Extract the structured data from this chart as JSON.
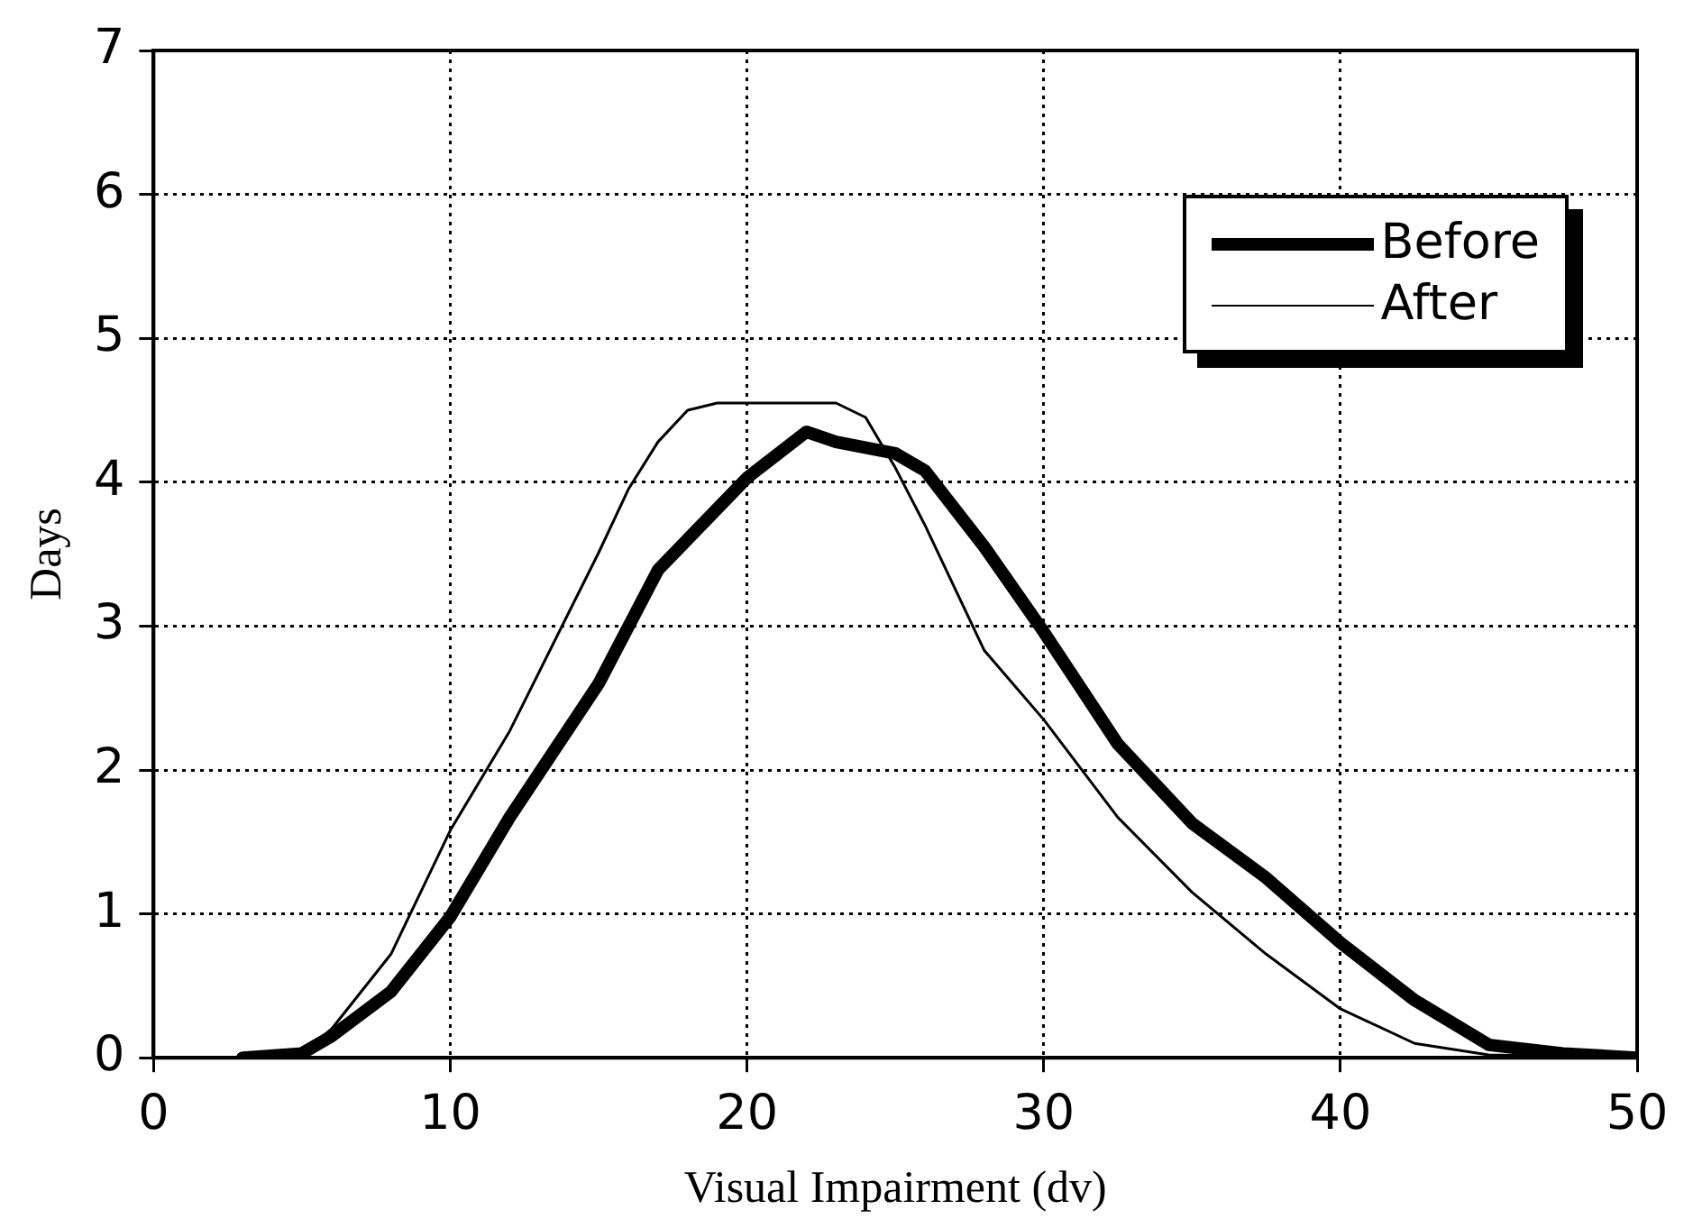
{
  "chart_data": {
    "type": "line",
    "xlabel": "Visual Impairment (dv)",
    "ylabel": "Days",
    "xlim": [
      0,
      50
    ],
    "xticks": [
      0,
      10,
      20,
      30,
      40,
      50
    ],
    "ylim": [
      0,
      7
    ],
    "yticks": [
      0,
      1,
      2,
      3,
      4,
      5,
      6,
      7
    ],
    "grid": true,
    "legend": "top right",
    "marker": "none",
    "series": [
      {
        "name": "Before",
        "color": "#000000",
        "x": [
          3,
          5,
          6,
          8,
          10,
          12,
          15,
          17,
          20,
          22,
          23,
          25,
          26,
          28,
          30,
          32.5,
          35,
          37.5,
          40,
          42.5,
          45,
          47.5,
          50
        ],
        "values": [
          0,
          0.03,
          0.15,
          0.46,
          0.98,
          1.67,
          2.6,
          3.39,
          4.03,
          4.35,
          4.28,
          4.2,
          4.08,
          3.55,
          2.96,
          2.18,
          1.63,
          1.25,
          0.8,
          0.4,
          0.09,
          0.03,
          0
        ]
      },
      {
        "name": "After",
        "color": "#000000",
        "x": [
          5,
          6,
          8,
          10,
          12,
          15,
          16,
          17,
          18,
          19,
          20,
          22,
          23,
          24,
          25,
          26,
          28,
          30,
          32.5,
          35,
          37.5,
          40,
          42.5,
          45,
          50
        ],
        "values": [
          0.03,
          0.2,
          0.72,
          1.58,
          2.27,
          3.51,
          3.95,
          4.28,
          4.5,
          4.55,
          4.55,
          4.55,
          4.55,
          4.45,
          4.1,
          3.7,
          2.83,
          2.35,
          1.67,
          1.15,
          0.72,
          0.34,
          0.1,
          0.02,
          0
        ]
      }
    ]
  }
}
